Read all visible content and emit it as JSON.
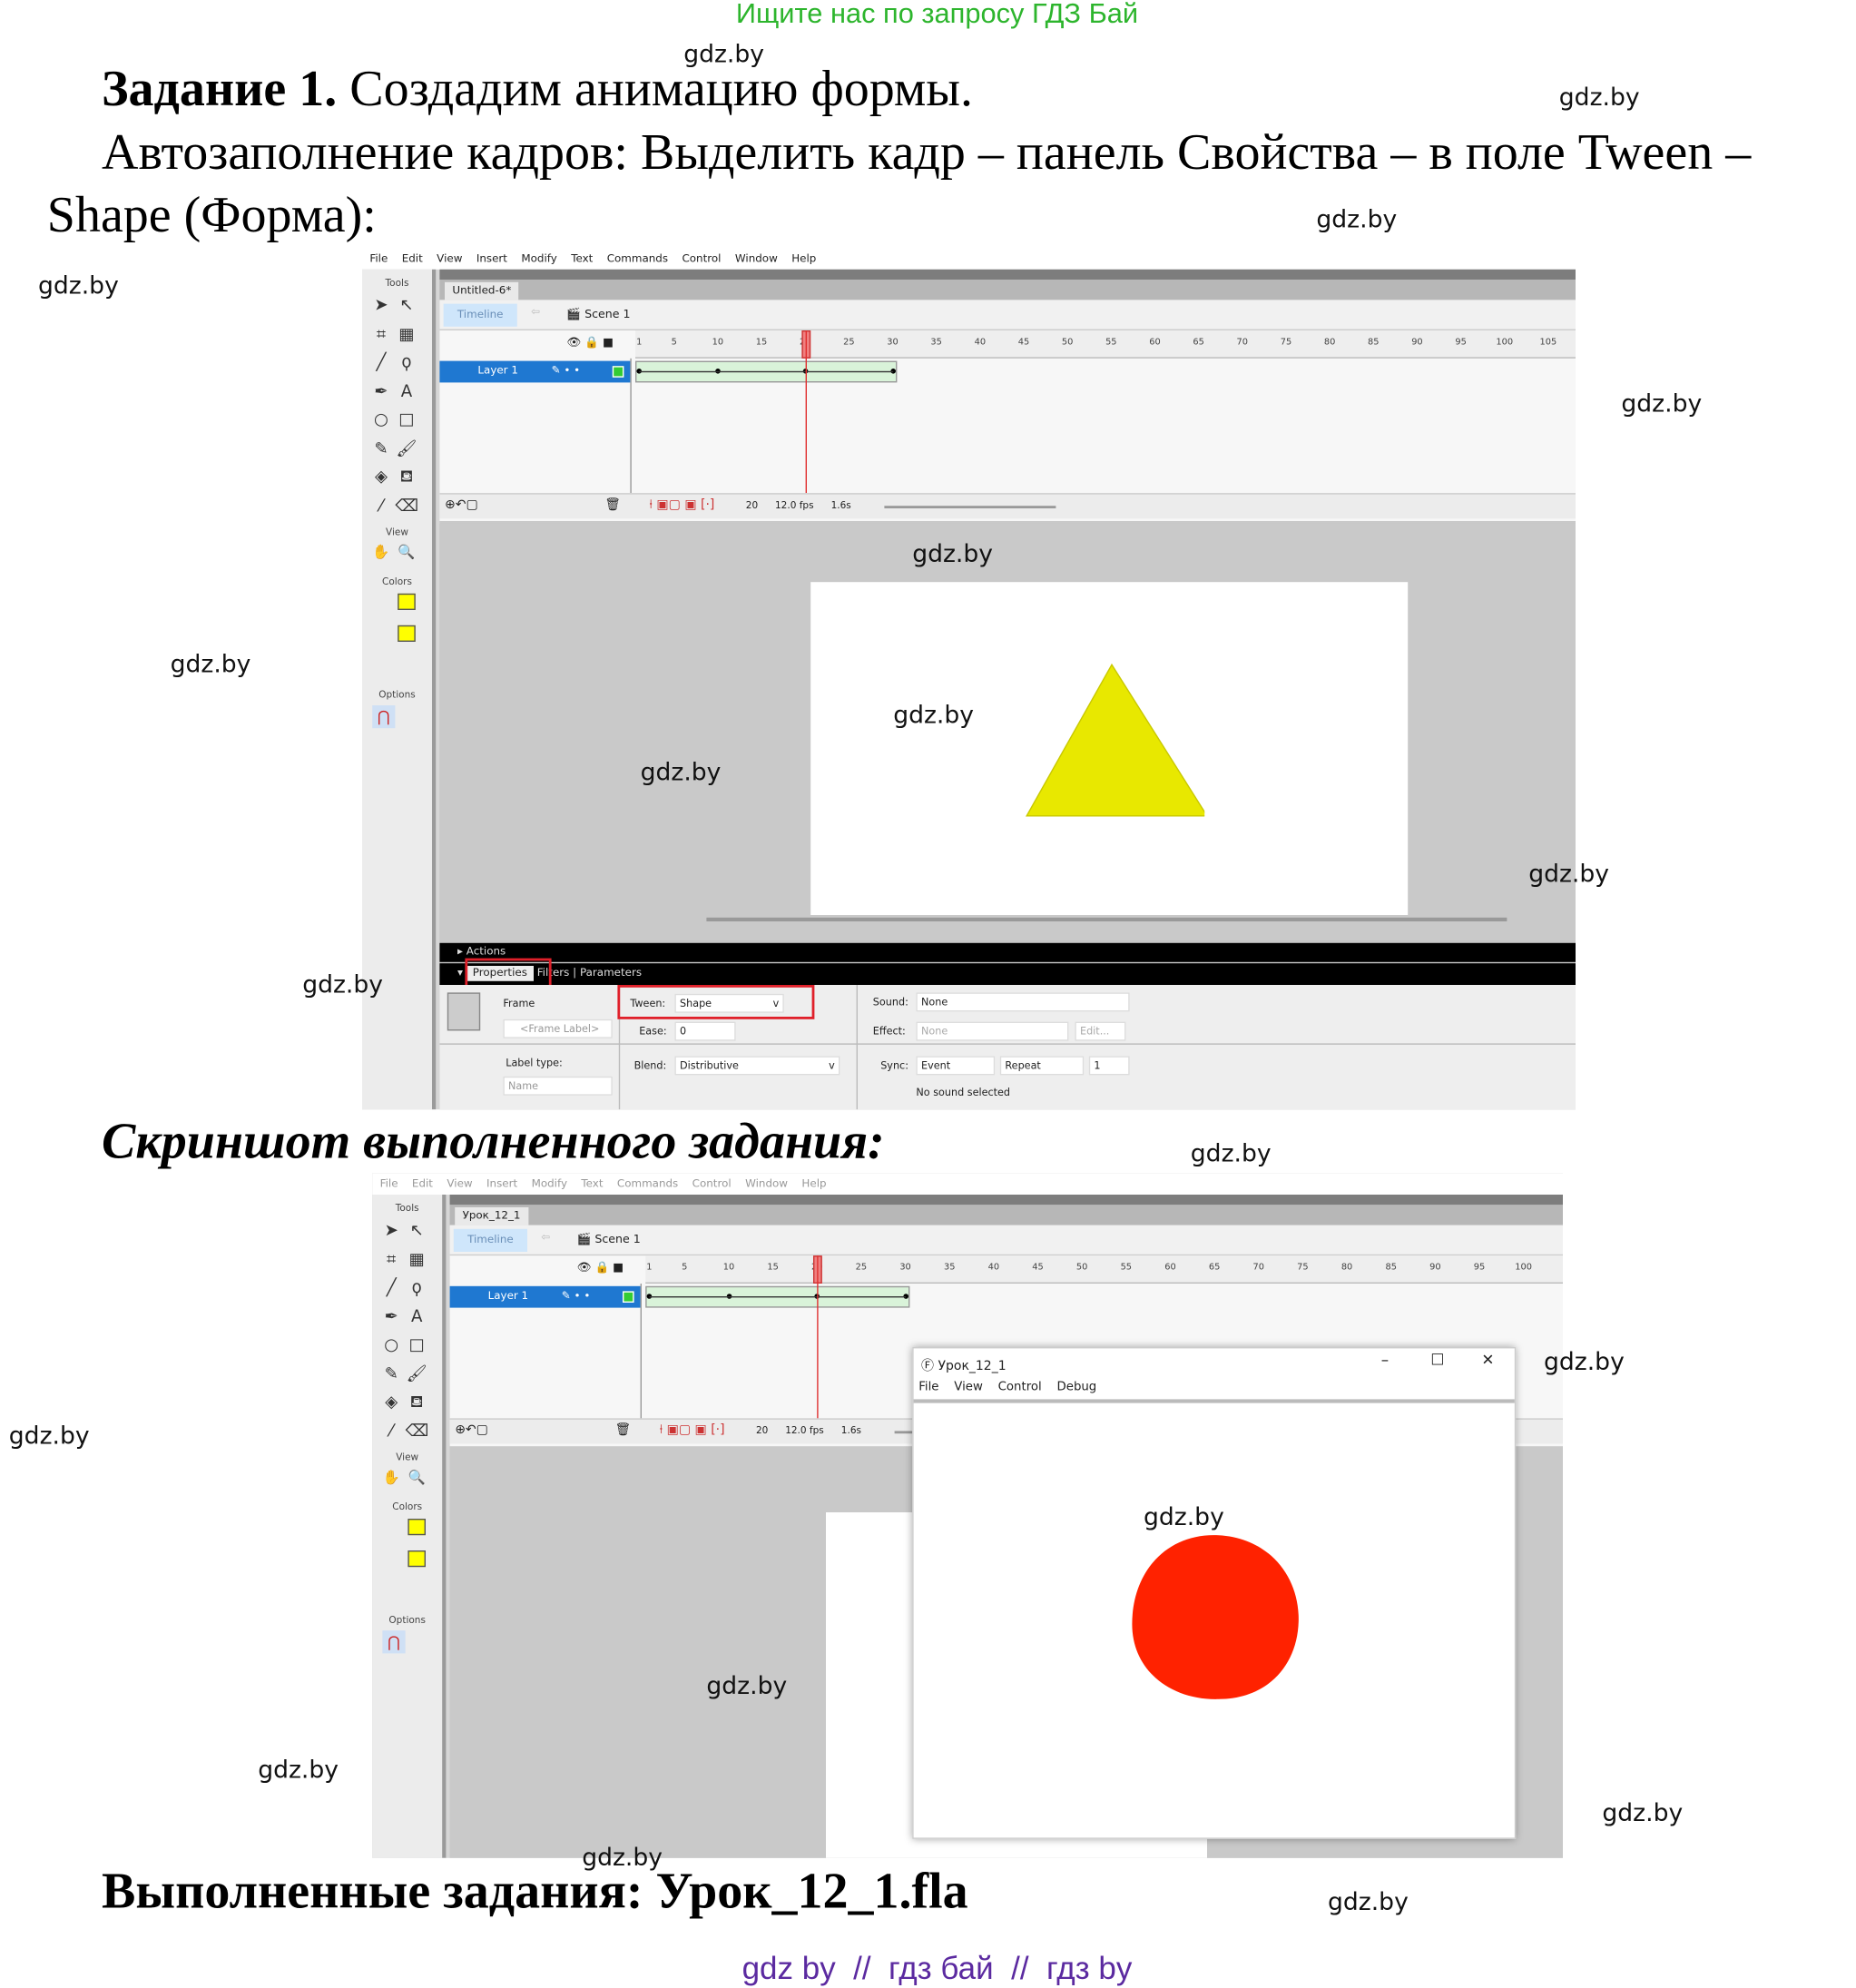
{
  "banner": {
    "text": "Ищите нас по запросу ГДЗ Бай",
    "color": "#2db52d"
  },
  "watermark": "gdz.by",
  "task": {
    "title_bold": "Задание 1.",
    "title_rest": " Создадим анимацию формы.",
    "line2": "Автозаполнение кадров: Выделить кадр – панель Свойства – в поле Tween –",
    "line3": "Shape (Форма):"
  },
  "screenshot_heading": "Скриншот выполненного задания:",
  "done_heading": "Выполненные задания: Урок_12_1.fla",
  "footer": {
    "text": "gdz by  //  гдз бай  //  гдз by",
    "color": "#5b2aa0"
  },
  "flash": {
    "menu": [
      "File",
      "Edit",
      "View",
      "Insert",
      "Modify",
      "Text",
      "Commands",
      "Control",
      "Window",
      "Help"
    ],
    "tools_label": "Tools",
    "view_label": "View",
    "colors_label": "Colors",
    "options_label": "Options",
    "timeline_label": "Timeline",
    "scene": "Scene 1",
    "layer": "Layer 1",
    "frame_num": "20",
    "fps": "12.0 fps",
    "time": "1.6s",
    "current_frame": 20,
    "keyframes": [
      1,
      10,
      20,
      30
    ]
  },
  "shot1": {
    "doc_tab": "Untitled-6*",
    "ruler": [
      "1",
      "5",
      "10",
      "15",
      "20",
      "25",
      "30",
      "35",
      "40",
      "45",
      "50",
      "55",
      "60",
      "65",
      "70",
      "75",
      "80",
      "85",
      "90",
      "95",
      "100",
      "105"
    ],
    "shape_color": "#e8e800",
    "actions": "Actions",
    "tabs": [
      "Properties",
      "Filters",
      "Parameters"
    ],
    "props": {
      "frame": "Frame",
      "frame_label_ph": "<Frame Label>",
      "label_type": "Label type:",
      "label_type_val": "Name",
      "tween": "Tween:",
      "tween_val": "Shape",
      "ease": "Ease:",
      "ease_val": "0",
      "blend": "Blend:",
      "blend_val": "Distributive",
      "sound": "Sound:",
      "sound_val": "None",
      "effect": "Effect:",
      "effect_val": "None",
      "edit": "Edit...",
      "sync": "Sync:",
      "sync_val": "Event",
      "repeat_val": "Repeat",
      "repeat_count": "1",
      "no_sound": "No sound selected"
    }
  },
  "shot2": {
    "doc_tab": "Урок_12_1",
    "ruler": [
      "1",
      "5",
      "10",
      "15",
      "20",
      "25",
      "30",
      "35",
      "40",
      "45",
      "50",
      "55",
      "60",
      "65",
      "70",
      "75",
      "80",
      "85",
      "90",
      "95",
      "100"
    ],
    "player": {
      "title": "Урок_12_1",
      "menu": [
        "File",
        "View",
        "Control",
        "Debug"
      ],
      "shape_color": "#ff2200"
    }
  }
}
